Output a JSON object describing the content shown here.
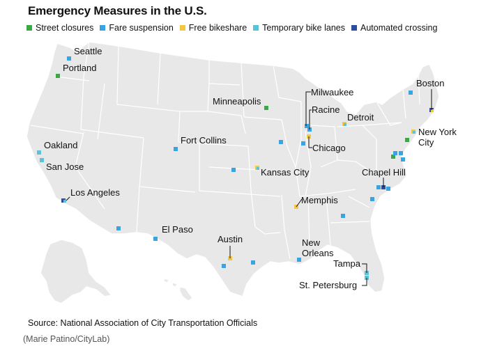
{
  "title": "Emergency Measures in the U.S.",
  "legend": [
    {
      "label": "Street closures",
      "color": "#3aa845"
    },
    {
      "label": "Fare suspension",
      "color": "#3aa3e3"
    },
    {
      "label": "Free bikeshare",
      "color": "#f2c744"
    },
    {
      "label": "Temporary bike lanes",
      "color": "#5bc3d8"
    },
    {
      "label": "Automated crossing",
      "color": "#2b4f9e"
    }
  ],
  "cities": [
    {
      "name": "Seattle"
    },
    {
      "name": "Portland"
    },
    {
      "name": "Oakland"
    },
    {
      "name": "San Jose"
    },
    {
      "name": "Los Angeles"
    },
    {
      "name": "Fort Collins"
    },
    {
      "name": "El Paso"
    },
    {
      "name": "Austin"
    },
    {
      "name": "Minneapolis"
    },
    {
      "name": "Kansas City"
    },
    {
      "name": "Milwaukee"
    },
    {
      "name": "Racine"
    },
    {
      "name": "Chicago"
    },
    {
      "name": "Detroit"
    },
    {
      "name": "Memphis"
    },
    {
      "name": "New Orleans"
    },
    {
      "name": "Tampa"
    },
    {
      "name": "St. Petersburg"
    },
    {
      "name": "Chapel Hill"
    },
    {
      "name": "New York City"
    },
    {
      "name": "Boston"
    }
  ],
  "source": "Source: National Association of City Transportation Officials",
  "credit": "(Marie Patino/CityLab)"
}
